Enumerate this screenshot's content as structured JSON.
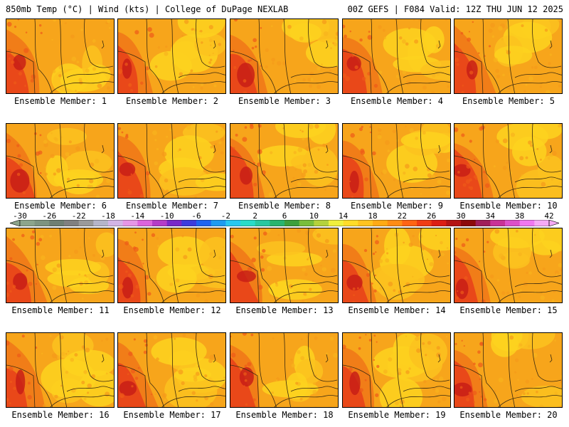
{
  "header": {
    "left_title": "850mb Temp (°C) | Wind (kts) | College of DuPage NEXLAB",
    "right_title": "00Z GEFS | F084 Valid: 12Z THU JUN 12 2025"
  },
  "panels": [
    {
      "label": "Ensemble Member: 1"
    },
    {
      "label": "Ensemble Member: 2"
    },
    {
      "label": "Ensemble Member: 3"
    },
    {
      "label": "Ensemble Member: 4"
    },
    {
      "label": "Ensemble Member: 5"
    },
    {
      "label": "Ensemble Member: 6"
    },
    {
      "label": "Ensemble Member: 7"
    },
    {
      "label": "Ensemble Member: 8"
    },
    {
      "label": "Ensemble Member: 9"
    },
    {
      "label": "Ensemble Member: 10"
    },
    {
      "label": "Ensemble Member: 11"
    },
    {
      "label": "Ensemble Member: 12"
    },
    {
      "label": "Ensemble Member: 13"
    },
    {
      "label": "Ensemble Member: 14"
    },
    {
      "label": "Ensemble Member: 15"
    },
    {
      "label": "Ensemble Member: 16"
    },
    {
      "label": "Ensemble Member: 17"
    },
    {
      "label": "Ensemble Member: 18"
    },
    {
      "label": "Ensemble Member: 19"
    },
    {
      "label": "Ensemble Member: 20"
    }
  ],
  "colorbar": {
    "tick_labels": [
      "-30",
      "-26",
      "-22",
      "-18",
      "-14",
      "-10",
      "-6",
      "-2",
      "2",
      "6",
      "10",
      "14",
      "18",
      "22",
      "26",
      "30",
      "34",
      "38",
      "42"
    ],
    "colors": [
      "#8ca58c",
      "#7d9480",
      "#6e7f73",
      "#808080",
      "#9a9a9a",
      "#b5b5c8",
      "#d2b4e6",
      "#e696e6",
      "#dc64dc",
      "#b43cc8",
      "#7828c8",
      "#3c3cdc",
      "#1e64f0",
      "#1e9bf0",
      "#28c8f0",
      "#28dcc8",
      "#28c8a0",
      "#28b46e",
      "#3ca03c",
      "#78be3c",
      "#b4d23c",
      "#f0f03c",
      "#ffdc28",
      "#ffc31e",
      "#ffaa14",
      "#ff8c14",
      "#ff6414",
      "#f03c14",
      "#dc1e14",
      "#b41414",
      "#8c0a0a",
      "#a01e5a",
      "#c83296",
      "#dc50c8",
      "#f078f0",
      "#f5aaf5"
    ]
  }
}
